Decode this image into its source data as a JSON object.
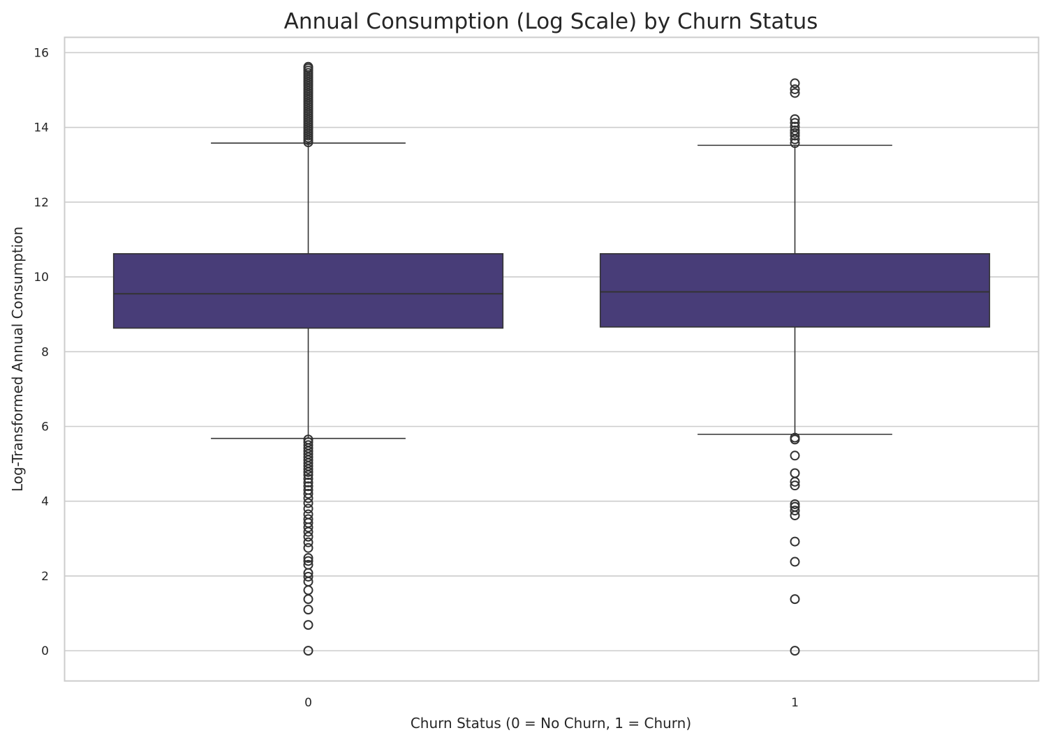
{
  "chart_data": {
    "type": "box",
    "title": "Annual Consumption (Log Scale) by Churn Status",
    "xlabel": "Churn Status (0 = No Churn, 1 = Churn)",
    "ylabel": "Log-Transformed Annual Consumption",
    "categories": [
      "0",
      "1"
    ],
    "ylim": [
      -0.8,
      16.4
    ],
    "yticks": [
      0,
      2,
      4,
      6,
      8,
      10,
      12,
      14,
      16
    ],
    "grid": true,
    "box_color": "#483d78",
    "line_color": "#333333",
    "grid_color": "#cccccc",
    "boxes": [
      {
        "category": "0",
        "whisker_low": 5.68,
        "q1": 8.63,
        "median": 9.55,
        "q3": 10.62,
        "whisker_high": 13.58,
        "outliers": [
          15.62,
          15.58,
          15.52,
          15.46,
          15.4,
          15.34,
          15.28,
          15.22,
          15.16,
          15.1,
          15.04,
          14.98,
          14.92,
          14.86,
          14.8,
          14.74,
          14.68,
          14.62,
          14.56,
          14.5,
          14.44,
          14.38,
          14.32,
          14.26,
          14.2,
          14.14,
          14.08,
          14.02,
          13.96,
          13.9,
          13.84,
          13.78,
          13.72,
          13.66,
          13.6,
          5.65,
          5.58,
          5.5,
          5.42,
          5.34,
          5.26,
          5.18,
          5.1,
          5.02,
          4.94,
          4.86,
          4.78,
          4.7,
          4.6,
          4.5,
          4.4,
          4.3,
          4.2,
          4.08,
          3.95,
          3.8,
          3.65,
          3.52,
          3.42,
          3.3,
          3.18,
          3.05,
          2.9,
          2.75,
          2.48,
          2.4,
          2.3,
          2.08,
          1.98,
          1.85,
          1.62,
          1.38,
          1.1,
          0.69,
          0.0
        ]
      },
      {
        "category": "1",
        "whisker_low": 5.79,
        "q1": 8.66,
        "median": 9.6,
        "q3": 10.62,
        "whisker_high": 13.52,
        "outliers": [
          15.18,
          15.02,
          14.92,
          14.22,
          14.12,
          14.02,
          13.92,
          13.85,
          13.78,
          13.68,
          13.58,
          5.7,
          5.65,
          5.22,
          4.75,
          4.52,
          4.42,
          3.92,
          3.85,
          3.75,
          3.62,
          2.92,
          2.38,
          1.38,
          0.0
        ]
      }
    ]
  }
}
